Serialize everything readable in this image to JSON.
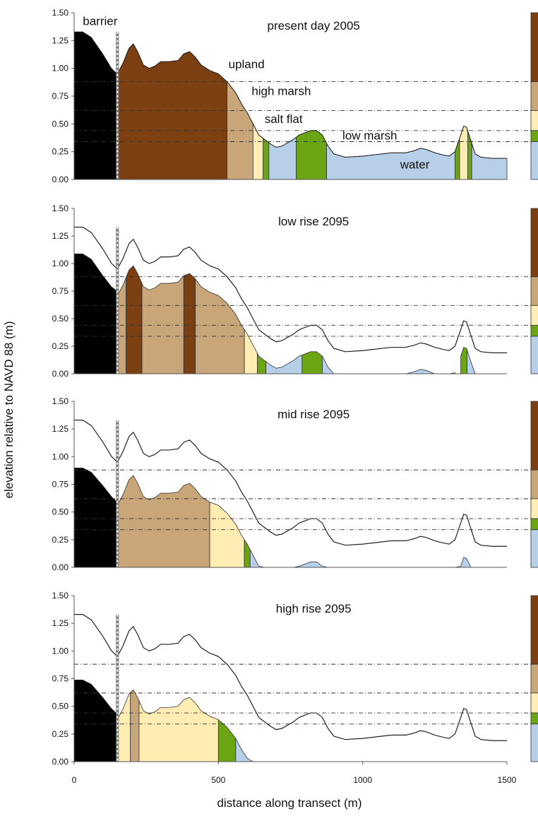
{
  "chart_data": {
    "type": "area",
    "ylabel": "elevation relative to NAVD 88 (m)",
    "xlabel": "distance along transect (m)",
    "xlim": [
      0,
      1500
    ],
    "ylim": [
      0,
      1.5
    ],
    "x_ticks": [
      "0",
      "500",
      "1000",
      "1500"
    ],
    "y_ticks": [
      "0.00",
      "0.25",
      "0.50",
      "0.75",
      "1.00",
      "1.25",
      "1.50"
    ],
    "barrier_x": 150,
    "thresholds": [
      0.88,
      0.62,
      0.44,
      0.34
    ],
    "colors": {
      "barrier": "#000000",
      "upland": "#7B3F12",
      "high marsh": "#C9A57A",
      "salt flat": "#FFEDB3",
      "low marsh": "#6BA513",
      "water": "#B8CFEA"
    },
    "zone_colors": {
      "upland": "#7B3F12",
      "high marsh": "#C9A57A",
      "salt flat": "#FFEDB3",
      "low marsh": "#6BA513",
      "water": "#B8CFEA"
    },
    "elevation_2005": [
      [
        0,
        1.33
      ],
      [
        30,
        1.33
      ],
      [
        60,
        1.28
      ],
      [
        100,
        1.13
      ],
      [
        130,
        1.0
      ],
      [
        150,
        0.95
      ],
      [
        170,
        1.05
      ],
      [
        190,
        1.18
      ],
      [
        205,
        1.22
      ],
      [
        220,
        1.15
      ],
      [
        240,
        1.03
      ],
      [
        260,
        1.0
      ],
      [
        280,
        1.02
      ],
      [
        300,
        1.06
      ],
      [
        330,
        1.06
      ],
      [
        360,
        1.07
      ],
      [
        380,
        1.13
      ],
      [
        400,
        1.15
      ],
      [
        420,
        1.1
      ],
      [
        440,
        1.03
      ],
      [
        470,
        0.98
      ],
      [
        500,
        0.95
      ],
      [
        530,
        0.88
      ],
      [
        560,
        0.78
      ],
      [
        580,
        0.68
      ],
      [
        600,
        0.6
      ],
      [
        620,
        0.5
      ],
      [
        640,
        0.4
      ],
      [
        660,
        0.36
      ],
      [
        680,
        0.32
      ],
      [
        700,
        0.29
      ],
      [
        720,
        0.3
      ],
      [
        740,
        0.33
      ],
      [
        760,
        0.36
      ],
      [
        780,
        0.4
      ],
      [
        800,
        0.42
      ],
      [
        820,
        0.44
      ],
      [
        840,
        0.44
      ],
      [
        860,
        0.4
      ],
      [
        880,
        0.3
      ],
      [
        900,
        0.23
      ],
      [
        940,
        0.2
      ],
      [
        1000,
        0.21
      ],
      [
        1100,
        0.24
      ],
      [
        1150,
        0.24
      ],
      [
        1180,
        0.26
      ],
      [
        1200,
        0.28
      ],
      [
        1220,
        0.27
      ],
      [
        1250,
        0.24
      ],
      [
        1280,
        0.22
      ],
      [
        1300,
        0.21
      ],
      [
        1320,
        0.25
      ],
      [
        1340,
        0.4
      ],
      [
        1350,
        0.48
      ],
      [
        1360,
        0.47
      ],
      [
        1375,
        0.35
      ],
      [
        1390,
        0.23
      ],
      [
        1410,
        0.2
      ],
      [
        1450,
        0.19
      ],
      [
        1500,
        0.19
      ]
    ],
    "panels": [
      {
        "title": "present day 2005",
        "barrier_height": [
          [
            0,
            1.33
          ],
          [
            30,
            1.33
          ],
          [
            60,
            1.28
          ],
          [
            100,
            1.13
          ],
          [
            130,
            1.0
          ],
          [
            150,
            0.95
          ]
        ],
        "drop": 0,
        "zones": [
          {
            "zone": "upland",
            "from": 150,
            "to": 530
          },
          {
            "zone": "high marsh",
            "from": 530,
            "to": 620
          },
          {
            "zone": "salt flat",
            "from": 620,
            "to": 655
          },
          {
            "zone": "low marsh",
            "from": 655,
            "to": 675
          },
          {
            "zone": "water",
            "from": 675,
            "to": 770
          },
          {
            "zone": "low marsh",
            "from": 770,
            "to": 875
          },
          {
            "zone": "water",
            "from": 875,
            "to": 1320
          },
          {
            "zone": "low marsh",
            "from": 1320,
            "to": 1336
          },
          {
            "zone": "salt flat",
            "from": 1336,
            "to": 1364
          },
          {
            "zone": "low marsh",
            "from": 1364,
            "to": 1378
          },
          {
            "zone": "water",
            "from": 1378,
            "to": 1500
          }
        ],
        "labels": [
          {
            "text": "barrier",
            "x": 30,
            "y": 1.39
          },
          {
            "text": "upland",
            "x": 535,
            "y": 1.0
          },
          {
            "text": "high marsh",
            "x": 615,
            "y": 0.76
          },
          {
            "text": "salt flat",
            "x": 660,
            "y": 0.51
          },
          {
            "text": "low marsh",
            "x": 930,
            "y": 0.36
          },
          {
            "text": "water",
            "x": 1130,
            "y": 0.1
          }
        ]
      },
      {
        "title": "low rise 2095",
        "barrier_height": [
          [
            0,
            1.09
          ],
          [
            30,
            1.09
          ],
          [
            60,
            1.04
          ],
          [
            100,
            0.89
          ],
          [
            130,
            0.79
          ],
          [
            150,
            0.75
          ]
        ],
        "drop": 0.24,
        "zones": [
          {
            "zone": "high marsh",
            "from": 150,
            "to": 180
          },
          {
            "zone": "upland",
            "from": 180,
            "to": 235
          },
          {
            "zone": "high marsh",
            "from": 235,
            "to": 380
          },
          {
            "zone": "upland",
            "from": 380,
            "to": 420
          },
          {
            "zone": "high marsh",
            "from": 420,
            "to": 590
          },
          {
            "zone": "salt flat",
            "from": 590,
            "to": 635
          },
          {
            "zone": "low marsh",
            "from": 635,
            "to": 665
          },
          {
            "zone": "water",
            "from": 665,
            "to": 790
          },
          {
            "zone": "low marsh",
            "from": 790,
            "to": 860
          },
          {
            "zone": "water",
            "from": 860,
            "to": 1320
          },
          {
            "zone": "low marsh",
            "from": 1340,
            "to": 1362
          },
          {
            "zone": "water",
            "from": 1362,
            "to": 1500
          }
        ],
        "labels": []
      },
      {
        "title": "mid rise 2095",
        "barrier_height": [
          [
            0,
            0.9
          ],
          [
            30,
            0.9
          ],
          [
            60,
            0.86
          ],
          [
            100,
            0.74
          ],
          [
            130,
            0.64
          ],
          [
            150,
            0.59
          ]
        ],
        "drop": 0.39,
        "zones": [
          {
            "zone": "high marsh",
            "from": 150,
            "to": 470
          },
          {
            "zone": "salt flat",
            "from": 470,
            "to": 590
          },
          {
            "zone": "low marsh",
            "from": 590,
            "to": 610
          },
          {
            "zone": "water",
            "from": 610,
            "to": 1500
          }
        ],
        "labels": []
      },
      {
        "title": "high rise 2095",
        "barrier_height": [
          [
            0,
            0.74
          ],
          [
            30,
            0.74
          ],
          [
            60,
            0.7
          ],
          [
            100,
            0.58
          ],
          [
            130,
            0.48
          ],
          [
            150,
            0.43
          ]
        ],
        "drop": 0.57,
        "zones": [
          {
            "zone": "salt flat",
            "from": 150,
            "to": 195
          },
          {
            "zone": "high marsh",
            "from": 195,
            "to": 225
          },
          {
            "zone": "salt flat",
            "from": 225,
            "to": 500
          },
          {
            "zone": "low marsh",
            "from": 500,
            "to": 560
          },
          {
            "zone": "water",
            "from": 560,
            "to": 1500
          }
        ],
        "labels": []
      }
    ]
  }
}
